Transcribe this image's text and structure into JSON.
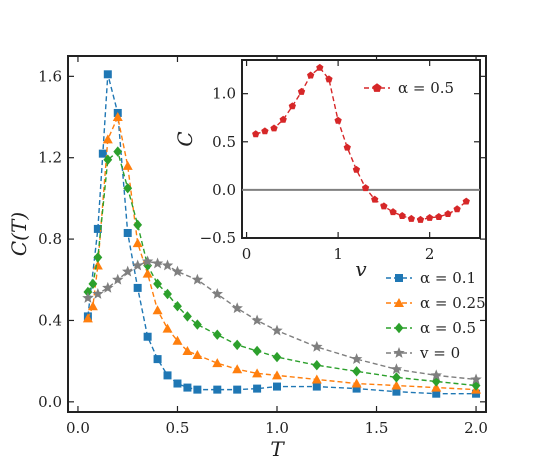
{
  "chart_data": [
    {
      "type": "line",
      "xlabel": "T",
      "ylabel": "C(T)",
      "xlim": [
        -0.05,
        2.05
      ],
      "ylim": [
        -0.05,
        1.7
      ],
      "xticks": [
        "0.0",
        "0.5",
        "1.0",
        "1.5",
        "2.0"
      ],
      "xtick_values": [
        0,
        0.5,
        1.0,
        1.5,
        2.0
      ],
      "yticks": [
        "0.0",
        "0.4",
        "0.8",
        "1.2",
        "1.6"
      ],
      "ytick_values": [
        0,
        0.4,
        0.8,
        1.2,
        1.6
      ],
      "legend_position": "lower-right",
      "series": [
        {
          "name": "α = 0.1",
          "color": "#1f77b4",
          "marker": "square",
          "x": [
            0.05,
            0.1,
            0.125,
            0.15,
            0.2,
            0.25,
            0.3,
            0.35,
            0.4,
            0.45,
            0.5,
            0.55,
            0.6,
            0.7,
            0.8,
            0.9,
            1.0,
            1.2,
            1.4,
            1.6,
            1.8,
            2.0
          ],
          "y": [
            0.42,
            0.85,
            1.22,
            1.61,
            1.42,
            0.83,
            0.56,
            0.32,
            0.21,
            0.13,
            0.09,
            0.07,
            0.06,
            0.06,
            0.06,
            0.065,
            0.075,
            0.075,
            0.065,
            0.05,
            0.04,
            0.04
          ]
        },
        {
          "name": "α = 0.25",
          "color": "#ff7f0e",
          "marker": "triangle",
          "x": [
            0.05,
            0.075,
            0.1,
            0.15,
            0.2,
            0.25,
            0.3,
            0.35,
            0.4,
            0.45,
            0.5,
            0.55,
            0.6,
            0.7,
            0.8,
            0.9,
            1.0,
            1.2,
            1.4,
            1.6,
            1.8,
            2.0
          ],
          "y": [
            0.41,
            0.47,
            0.67,
            1.29,
            1.4,
            1.16,
            0.78,
            0.63,
            0.45,
            0.36,
            0.3,
            0.25,
            0.23,
            0.19,
            0.16,
            0.14,
            0.13,
            0.11,
            0.09,
            0.08,
            0.07,
            0.06
          ]
        },
        {
          "name": "α = 0.5",
          "color": "#2ca02c",
          "marker": "diamond",
          "x": [
            0.05,
            0.075,
            0.1,
            0.15,
            0.2,
            0.25,
            0.3,
            0.35,
            0.4,
            0.45,
            0.5,
            0.55,
            0.6,
            0.7,
            0.8,
            0.9,
            1.0,
            1.2,
            1.4,
            1.6,
            1.8,
            2.0
          ],
          "y": [
            0.54,
            0.58,
            0.71,
            1.19,
            1.23,
            1.05,
            0.87,
            0.67,
            0.58,
            0.53,
            0.47,
            0.42,
            0.38,
            0.33,
            0.28,
            0.25,
            0.22,
            0.18,
            0.15,
            0.12,
            0.1,
            0.08
          ]
        },
        {
          "name": "v = 0",
          "color": "#7f7f7f",
          "marker": "star",
          "x": [
            0.05,
            0.1,
            0.15,
            0.2,
            0.25,
            0.3,
            0.35,
            0.4,
            0.45,
            0.5,
            0.6,
            0.7,
            0.8,
            0.9,
            1.0,
            1.2,
            1.4,
            1.6,
            1.8,
            2.0
          ],
          "y": [
            0.51,
            0.53,
            0.56,
            0.6,
            0.64,
            0.67,
            0.69,
            0.68,
            0.67,
            0.64,
            0.6,
            0.53,
            0.46,
            0.4,
            0.35,
            0.27,
            0.21,
            0.16,
            0.13,
            0.11
          ]
        }
      ]
    },
    {
      "type": "line",
      "xlabel": "v",
      "ylabel": "C",
      "xlim": [
        -0.05,
        2.55
      ],
      "ylim": [
        -0.5,
        1.35
      ],
      "xticks": [
        "0",
        "1",
        "2"
      ],
      "xtick_values": [
        0,
        1,
        2
      ],
      "yticks": [
        "−0.5",
        "0.0",
        "0.5",
        "1.0"
      ],
      "ytick_values": [
        -0.5,
        0,
        0.5,
        1.0
      ],
      "reference_line_y": 0,
      "legend_position": "top-right",
      "series": [
        {
          "name": "α = 0.5",
          "color": "#d62728",
          "marker": "pentagon",
          "x": [
            0.1,
            0.2,
            0.3,
            0.4,
            0.5,
            0.6,
            0.7,
            0.8,
            0.9,
            1.0,
            1.1,
            1.2,
            1.3,
            1.4,
            1.5,
            1.6,
            1.7,
            1.8,
            1.9,
            2.0,
            2.1,
            2.2,
            2.3,
            2.4
          ],
          "y": [
            0.58,
            0.61,
            0.64,
            0.73,
            0.87,
            1.02,
            1.19,
            1.27,
            1.15,
            0.72,
            0.44,
            0.21,
            0.02,
            -0.1,
            -0.17,
            -0.23,
            -0.27,
            -0.3,
            -0.31,
            -0.29,
            -0.28,
            -0.25,
            -0.2,
            -0.12
          ]
        }
      ]
    }
  ]
}
